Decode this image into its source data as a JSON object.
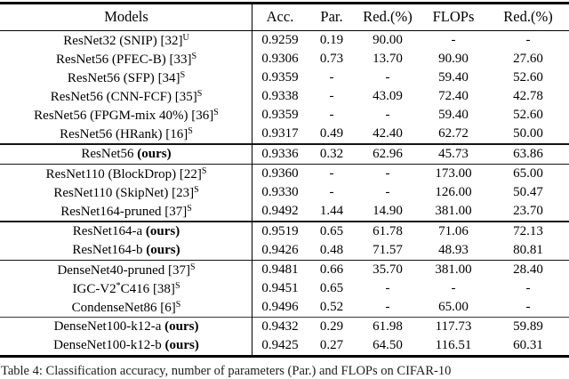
{
  "caption": "Table 4: Classification accuracy, number of parameters (Par.) and FLOPs on CIFAR-10",
  "table": {
    "columns": [
      "Models",
      "Acc.",
      "Par.",
      "Red.(%)",
      "FLOPs",
      "Red.(%)"
    ],
    "groups": [
      {
        "rows": [
          {
            "name": "ResNet32 (SNIP)",
            "ours": "",
            "ref": "[32]",
            "sup": "U",
            "acc": "0.9259",
            "par": "0.19",
            "par_red": "90.00",
            "flops": "-",
            "flops_red": "-"
          },
          {
            "name": "ResNet56 (PFEC-B)",
            "ours": "",
            "ref": "[33]",
            "sup": "S",
            "acc": "0.9306",
            "par": "0.73",
            "par_red": "13.70",
            "flops": "90.90",
            "flops_red": "27.60"
          },
          {
            "name": "ResNet56 (SFP)",
            "ours": "",
            "ref": "[34]",
            "sup": "S",
            "acc": "0.9359",
            "par": "-",
            "par_red": "-",
            "flops": "59.40",
            "flops_red": "52.60"
          },
          {
            "name": "ResNet56 (CNN-FCF)",
            "ours": "",
            "ref": "[35]",
            "sup": "S",
            "acc": "0.9338",
            "par": "-",
            "par_red": "43.09",
            "flops": "72.40",
            "flops_red": "42.78"
          },
          {
            "name": "ResNet56 (FPGM-mix 40%)",
            "ours": "",
            "ref": "[36]",
            "sup": "S",
            "acc": "0.9359",
            "par": "-",
            "par_red": "-",
            "flops": "59.40",
            "flops_red": "52.60"
          },
          {
            "name": "ResNet56 (HRank)",
            "ours": "",
            "ref": "[16]",
            "sup": "S",
            "acc": "0.9317",
            "par": "0.49",
            "par_red": "42.40",
            "flops": "62.72",
            "flops_red": "50.00"
          }
        ],
        "rule_after": "group"
      },
      {
        "rows": [
          {
            "name": "ResNet56",
            "ours": "(ours)",
            "ref": "",
            "sup": "",
            "acc": "0.9336",
            "par": "0.32",
            "par_red": "62.96",
            "flops": "45.73",
            "flops_red": "63.86"
          }
        ],
        "rule_after": "group"
      },
      {
        "rows": [
          {
            "name": "ResNet110 (BlockDrop)",
            "ours": "",
            "ref": "[22]",
            "sup": "S",
            "acc": "0.9360",
            "par": "-",
            "par_red": "-",
            "flops": "173.00",
            "flops_red": "65.00"
          },
          {
            "name": "ResNet110 (SkipNet)",
            "ours": "",
            "ref": "[23]",
            "sup": "S",
            "acc": "0.9330",
            "par": "-",
            "par_red": "-",
            "flops": "126.00",
            "flops_red": "50.47"
          },
          {
            "name": "ResNet164-pruned",
            "ours": "",
            "ref": "[37]",
            "sup": "S",
            "acc": "0.9492",
            "par": "1.44",
            "par_red": "14.90",
            "flops": "381.00",
            "flops_red": "23.70"
          }
        ],
        "rule_after": "group"
      },
      {
        "rows": [
          {
            "name": "ResNet164-a",
            "ours": "(ours)",
            "ref": "",
            "sup": "",
            "acc": "0.9519",
            "par": "0.65",
            "par_red": "61.78",
            "flops": "71.06",
            "flops_red": "72.13"
          },
          {
            "name": "ResNet164-b",
            "ours": "(ours)",
            "ref": "",
            "sup": "",
            "acc": "0.9426",
            "par": "0.48",
            "par_red": "71.57",
            "flops": "48.93",
            "flops_red": "80.81"
          }
        ],
        "rule_after": "group"
      },
      {
        "rows": [
          {
            "name": "DenseNet40-pruned",
            "ours": "",
            "ref": "[37]",
            "sup": "S",
            "acc": "0.9481",
            "par": "0.66",
            "par_red": "35.70",
            "flops": "381.00",
            "flops_red": "28.40"
          },
          {
            "name": "IGC-V2*C416",
            "ours": "",
            "ref": "[38]",
            "sup": "S",
            "acc": "0.9451",
            "par": "0.65",
            "par_red": "-",
            "flops": "-",
            "flops_red": "-"
          },
          {
            "name": "CondenseNet86",
            "ours": "",
            "ref": "[6]",
            "sup": "S",
            "acc": "0.9496",
            "par": "0.52",
            "par_red": "-",
            "flops": "65.00",
            "flops_red": "-"
          }
        ],
        "rule_after": "light"
      },
      {
        "rows": [
          {
            "name": "DenseNet100-k12-a",
            "ours": "(ours)",
            "ref": "",
            "sup": "",
            "acc": "0.9432",
            "par": "0.29",
            "par_red": "61.98",
            "flops": "117.73",
            "flops_red": "59.89"
          },
          {
            "name": "DenseNet100-k12-b",
            "ours": "(ours)",
            "ref": "",
            "sup": "",
            "acc": "0.9425",
            "par": "0.27",
            "par_red": "64.50",
            "flops": "116.51",
            "flops_red": "60.31"
          }
        ],
        "rule_after": "none"
      }
    ]
  }
}
